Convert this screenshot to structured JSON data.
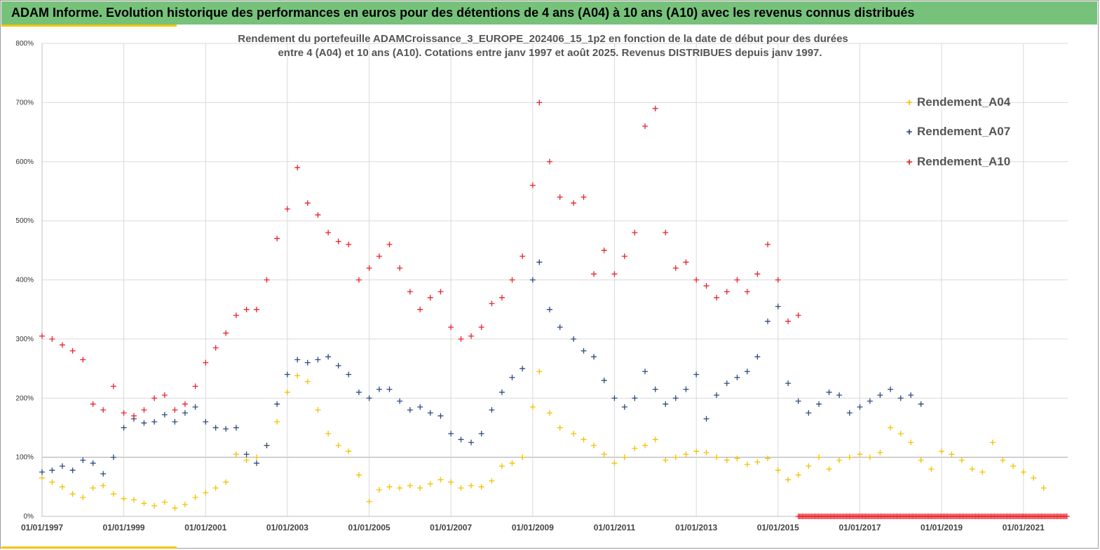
{
  "header": {
    "banner_title": "ADAM Informe. Evolution historique des performances en euros pour des détentions de 4 ans (A04) à 10 ans (A10) avec les revenus connus distribués"
  },
  "colors": {
    "banner_bg": "#76c27a",
    "accent": "#f2c500",
    "A04": "#f2c200",
    "A07": "#2e4a7d",
    "A10": "#e8232a",
    "grid": "#d9d9d9"
  },
  "chart_data": {
    "type": "scatter",
    "marker": "plus",
    "title_line1": "Rendement du portefeuille ADAMCroissance_3_EUROPE_202406_15_1p2  en fonction de la date de début pour des durées",
    "title_line2": "entre 4 (A04) et 10 ans (A10). Cotations entre janv 1997 et août 2025. Revenus DISTRIBUES depuis janv 1997.",
    "xlabel": "",
    "ylabel": "",
    "x_ticks": [
      "01/01/1997",
      "01/01/1999",
      "01/01/2001",
      "01/01/2003",
      "01/01/2005",
      "01/01/2007",
      "01/01/2009",
      "01/01/2011",
      "01/01/2013",
      "01/01/2015",
      "01/01/2017",
      "01/01/2019",
      "01/01/2021"
    ],
    "xlim": [
      "1997-01-01",
      "2022-02-01"
    ],
    "y_ticks": [
      "0%",
      "100%",
      "200%",
      "300%",
      "400%",
      "500%",
      "600%",
      "700%",
      "800%"
    ],
    "ylim": [
      0,
      800
    ],
    "grid": true,
    "legend_position": "top-right",
    "series": [
      {
        "name": "Rendement_A04",
        "color": "#f2c200",
        "points": [
          [
            "1997-01-01",
            65
          ],
          [
            "1997-04-01",
            58
          ],
          [
            "1997-07-01",
            50
          ],
          [
            "1997-10-01",
            38
          ],
          [
            "1998-01-01",
            32
          ],
          [
            "1998-04-01",
            48
          ],
          [
            "1998-07-01",
            52
          ],
          [
            "1998-10-01",
            38
          ],
          [
            "1999-01-01",
            30
          ],
          [
            "1999-04-01",
            28
          ],
          [
            "1999-07-01",
            22
          ],
          [
            "1999-10-01",
            18
          ],
          [
            "2000-01-01",
            24
          ],
          [
            "2000-04-01",
            14
          ],
          [
            "2000-07-01",
            20
          ],
          [
            "2000-10-01",
            32
          ],
          [
            "2001-01-01",
            40
          ],
          [
            "2001-04-01",
            48
          ],
          [
            "2001-07-01",
            58
          ],
          [
            "2001-10-01",
            105
          ],
          [
            "2002-01-01",
            95
          ],
          [
            "2002-04-01",
            100
          ],
          [
            "2002-07-01",
            120
          ],
          [
            "2002-10-01",
            160
          ],
          [
            "2003-01-01",
            210
          ],
          [
            "2003-04-01",
            238
          ],
          [
            "2003-07-01",
            228
          ],
          [
            "2003-10-01",
            180
          ],
          [
            "2004-01-01",
            140
          ],
          [
            "2004-04-01",
            120
          ],
          [
            "2004-07-01",
            110
          ],
          [
            "2004-10-01",
            70
          ],
          [
            "2005-01-01",
            25
          ],
          [
            "2005-04-01",
            45
          ],
          [
            "2005-07-01",
            50
          ],
          [
            "2005-10-01",
            48
          ],
          [
            "2006-01-01",
            52
          ],
          [
            "2006-04-01",
            48
          ],
          [
            "2006-07-01",
            55
          ],
          [
            "2006-10-01",
            62
          ],
          [
            "2007-01-01",
            58
          ],
          [
            "2007-04-01",
            48
          ],
          [
            "2007-07-01",
            52
          ],
          [
            "2007-10-01",
            50
          ],
          [
            "2008-01-01",
            60
          ],
          [
            "2008-04-01",
            85
          ],
          [
            "2008-07-01",
            90
          ],
          [
            "2008-10-01",
            100
          ],
          [
            "2009-01-01",
            185
          ],
          [
            "2009-03-01",
            245
          ],
          [
            "2009-06-01",
            175
          ],
          [
            "2009-09-01",
            150
          ],
          [
            "2010-01-01",
            140
          ],
          [
            "2010-04-01",
            130
          ],
          [
            "2010-07-01",
            120
          ],
          [
            "2010-10-01",
            105
          ],
          [
            "2011-01-01",
            90
          ],
          [
            "2011-04-01",
            100
          ],
          [
            "2011-07-01",
            115
          ],
          [
            "2011-10-01",
            120
          ],
          [
            "2012-01-01",
            130
          ],
          [
            "2012-04-01",
            95
          ],
          [
            "2012-07-01",
            100
          ],
          [
            "2012-10-01",
            105
          ],
          [
            "2013-01-01",
            110
          ],
          [
            "2013-04-01",
            108
          ],
          [
            "2013-07-01",
            100
          ],
          [
            "2013-10-01",
            95
          ],
          [
            "2014-01-01",
            98
          ],
          [
            "2014-04-01",
            88
          ],
          [
            "2014-07-01",
            92
          ],
          [
            "2014-10-01",
            98
          ],
          [
            "2015-01-01",
            78
          ],
          [
            "2015-04-01",
            62
          ],
          [
            "2015-07-01",
            70
          ],
          [
            "2015-10-01",
            85
          ],
          [
            "2016-01-01",
            100
          ],
          [
            "2016-04-01",
            80
          ],
          [
            "2016-07-01",
            95
          ],
          [
            "2016-10-01",
            100
          ],
          [
            "2017-01-01",
            105
          ],
          [
            "2017-04-01",
            100
          ],
          [
            "2017-07-01",
            108
          ],
          [
            "2017-10-01",
            150
          ],
          [
            "2018-01-01",
            140
          ],
          [
            "2018-04-01",
            125
          ],
          [
            "2018-07-01",
            95
          ],
          [
            "2018-10-01",
            80
          ],
          [
            "2019-01-01",
            110
          ],
          [
            "2019-04-01",
            105
          ],
          [
            "2019-07-01",
            95
          ],
          [
            "2019-10-01",
            80
          ],
          [
            "2020-01-01",
            75
          ],
          [
            "2020-04-01",
            125
          ],
          [
            "2020-07-01",
            95
          ],
          [
            "2020-10-01",
            85
          ],
          [
            "2021-01-01",
            75
          ],
          [
            "2021-04-01",
            65
          ],
          [
            "2021-07-01",
            48
          ]
        ]
      },
      {
        "name": "Rendement_A07",
        "color": "#2e4a7d",
        "points": [
          [
            "1997-01-01",
            75
          ],
          [
            "1997-04-01",
            78
          ],
          [
            "1997-07-01",
            85
          ],
          [
            "1997-10-01",
            78
          ],
          [
            "1998-01-01",
            95
          ],
          [
            "1998-04-01",
            90
          ],
          [
            "1998-07-01",
            72
          ],
          [
            "1998-10-01",
            100
          ],
          [
            "1999-01-01",
            150
          ],
          [
            "1999-04-01",
            165
          ],
          [
            "1999-07-01",
            158
          ],
          [
            "1999-10-01",
            160
          ],
          [
            "2000-01-01",
            172
          ],
          [
            "2000-04-01",
            160
          ],
          [
            "2000-07-01",
            175
          ],
          [
            "2000-10-01",
            185
          ],
          [
            "2001-01-01",
            160
          ],
          [
            "2001-04-01",
            150
          ],
          [
            "2001-07-01",
            148
          ],
          [
            "2001-10-01",
            150
          ],
          [
            "2002-01-01",
            105
          ],
          [
            "2002-04-01",
            90
          ],
          [
            "2002-07-01",
            120
          ],
          [
            "2002-10-01",
            190
          ],
          [
            "2003-01-01",
            240
          ],
          [
            "2003-04-01",
            265
          ],
          [
            "2003-07-01",
            260
          ],
          [
            "2003-10-01",
            265
          ],
          [
            "2004-01-01",
            270
          ],
          [
            "2004-04-01",
            255
          ],
          [
            "2004-07-01",
            240
          ],
          [
            "2004-10-01",
            210
          ],
          [
            "2005-01-01",
            200
          ],
          [
            "2005-04-01",
            215
          ],
          [
            "2005-07-01",
            215
          ],
          [
            "2005-10-01",
            195
          ],
          [
            "2006-01-01",
            180
          ],
          [
            "2006-04-01",
            185
          ],
          [
            "2006-07-01",
            175
          ],
          [
            "2006-10-01",
            170
          ],
          [
            "2007-01-01",
            140
          ],
          [
            "2007-04-01",
            130
          ],
          [
            "2007-07-01",
            125
          ],
          [
            "2007-10-01",
            140
          ],
          [
            "2008-01-01",
            180
          ],
          [
            "2008-04-01",
            210
          ],
          [
            "2008-07-01",
            235
          ],
          [
            "2008-10-01",
            250
          ],
          [
            "2009-01-01",
            400
          ],
          [
            "2009-03-01",
            430
          ],
          [
            "2009-06-01",
            350
          ],
          [
            "2009-09-01",
            320
          ],
          [
            "2010-01-01",
            300
          ],
          [
            "2010-04-01",
            280
          ],
          [
            "2010-07-01",
            270
          ],
          [
            "2010-10-01",
            230
          ],
          [
            "2011-01-01",
            200
          ],
          [
            "2011-04-01",
            185
          ],
          [
            "2011-07-01",
            200
          ],
          [
            "2011-10-01",
            245
          ],
          [
            "2012-01-01",
            215
          ],
          [
            "2012-04-01",
            190
          ],
          [
            "2012-07-01",
            200
          ],
          [
            "2012-10-01",
            215
          ],
          [
            "2013-01-01",
            240
          ],
          [
            "2013-04-01",
            165
          ],
          [
            "2013-07-01",
            205
          ],
          [
            "2013-10-01",
            225
          ],
          [
            "2014-01-01",
            235
          ],
          [
            "2014-04-01",
            245
          ],
          [
            "2014-07-01",
            270
          ],
          [
            "2014-10-01",
            330
          ],
          [
            "2015-01-01",
            355
          ],
          [
            "2015-04-01",
            225
          ],
          [
            "2015-07-01",
            195
          ],
          [
            "2015-10-01",
            175
          ],
          [
            "2016-01-01",
            190
          ],
          [
            "2016-04-01",
            210
          ],
          [
            "2016-07-01",
            205
          ],
          [
            "2016-10-01",
            175
          ],
          [
            "2017-01-01",
            185
          ],
          [
            "2017-04-01",
            195
          ],
          [
            "2017-07-01",
            205
          ],
          [
            "2017-10-01",
            215
          ],
          [
            "2018-01-01",
            200
          ],
          [
            "2018-04-01",
            205
          ],
          [
            "2018-07-01",
            190
          ]
        ]
      },
      {
        "name": "Rendement_A10",
        "color": "#e8232a",
        "points": [
          [
            "1997-01-01",
            305
          ],
          [
            "1997-04-01",
            300
          ],
          [
            "1997-07-01",
            290
          ],
          [
            "1997-10-01",
            280
          ],
          [
            "1998-01-01",
            265
          ],
          [
            "1998-04-01",
            190
          ],
          [
            "1998-07-01",
            180
          ],
          [
            "1998-10-01",
            220
          ],
          [
            "1999-01-01",
            175
          ],
          [
            "1999-04-01",
            170
          ],
          [
            "1999-07-01",
            180
          ],
          [
            "1999-10-01",
            200
          ],
          [
            "2000-01-01",
            205
          ],
          [
            "2000-04-01",
            180
          ],
          [
            "2000-07-01",
            190
          ],
          [
            "2000-10-01",
            220
          ],
          [
            "2001-01-01",
            260
          ],
          [
            "2001-04-01",
            285
          ],
          [
            "2001-07-01",
            310
          ],
          [
            "2001-10-01",
            340
          ],
          [
            "2002-01-01",
            350
          ],
          [
            "2002-04-01",
            350
          ],
          [
            "2002-07-01",
            400
          ],
          [
            "2002-10-01",
            470
          ],
          [
            "2003-01-01",
            520
          ],
          [
            "2003-04-01",
            590
          ],
          [
            "2003-07-01",
            530
          ],
          [
            "2003-10-01",
            510
          ],
          [
            "2004-01-01",
            480
          ],
          [
            "2004-04-01",
            465
          ],
          [
            "2004-07-01",
            460
          ],
          [
            "2004-10-01",
            400
          ],
          [
            "2005-01-01",
            420
          ],
          [
            "2005-04-01",
            440
          ],
          [
            "2005-07-01",
            460
          ],
          [
            "2005-10-01",
            420
          ],
          [
            "2006-01-01",
            380
          ],
          [
            "2006-04-01",
            350
          ],
          [
            "2006-07-01",
            370
          ],
          [
            "2006-10-01",
            380
          ],
          [
            "2007-01-01",
            320
          ],
          [
            "2007-04-01",
            300
          ],
          [
            "2007-07-01",
            305
          ],
          [
            "2007-10-01",
            320
          ],
          [
            "2008-01-01",
            360
          ],
          [
            "2008-04-01",
            370
          ],
          [
            "2008-07-01",
            400
          ],
          [
            "2008-10-01",
            440
          ],
          [
            "2009-01-01",
            560
          ],
          [
            "2009-03-01",
            700
          ],
          [
            "2009-06-01",
            600
          ],
          [
            "2009-09-01",
            540
          ],
          [
            "2010-01-01",
            530
          ],
          [
            "2010-04-01",
            540
          ],
          [
            "2010-07-01",
            410
          ],
          [
            "2010-10-01",
            450
          ],
          [
            "2011-01-01",
            410
          ],
          [
            "2011-04-01",
            440
          ],
          [
            "2011-07-01",
            480
          ],
          [
            "2011-10-01",
            660
          ],
          [
            "2012-01-01",
            690
          ],
          [
            "2012-04-01",
            480
          ],
          [
            "2012-07-01",
            420
          ],
          [
            "2012-10-01",
            430
          ],
          [
            "2013-01-01",
            400
          ],
          [
            "2013-04-01",
            390
          ],
          [
            "2013-07-01",
            370
          ],
          [
            "2013-10-01",
            380
          ],
          [
            "2014-01-01",
            400
          ],
          [
            "2014-04-01",
            380
          ],
          [
            "2014-07-01",
            410
          ],
          [
            "2014-10-01",
            460
          ],
          [
            "2015-01-01",
            400
          ],
          [
            "2015-04-01",
            330
          ],
          [
            "2015-07-01",
            340
          ]
        ]
      }
    ],
    "baseline_marks": {
      "color": "#e8232a",
      "from": "2015-07-01",
      "to": "2022-02-01",
      "value": 0
    }
  }
}
